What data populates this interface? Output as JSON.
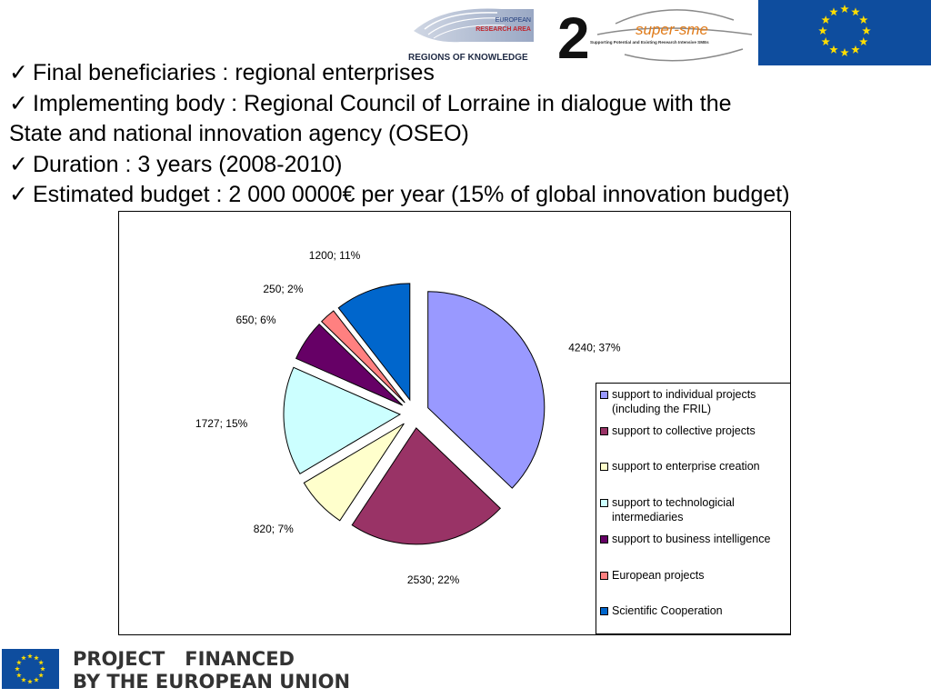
{
  "header": {
    "era_logo_text": [
      "EUROPEAN",
      "RESEARCH AREA",
      "REGIONS OF KNOWLEDGE",
      "2"
    ],
    "super_logo_text": [
      "super-sme",
      "Supporting Potential and Existing Research Intensive SMEs"
    ]
  },
  "bullets": [
    {
      "lines": [
        "Final beneficiaries : regional enterprises"
      ]
    },
    {
      "lines": [
        "Implementing body : Regional Council of Lorraine in dialogue with the",
        "State and national innovation agency (OSEO)"
      ]
    },
    {
      "lines": [
        "Duration : 3 years (2008-2010)"
      ]
    },
    {
      "lines": [
        "Estimated budget : 2 000 0000€ per year (15% of global innovation budget)"
      ]
    }
  ],
  "chart_data": {
    "type": "pie",
    "title": "",
    "exploded": true,
    "legend_position": "right",
    "slices": [
      {
        "name": "support to individual projects (including the FRIL)",
        "value": 4240,
        "percent": 37,
        "label": "4240; 37%",
        "color": "#9999ff"
      },
      {
        "name": "support to collective projects",
        "value": 2530,
        "percent": 22,
        "label": "2530; 22%",
        "color": "#993366"
      },
      {
        "name": "support to enterprise creation",
        "value": 820,
        "percent": 7,
        "label": "820; 7%",
        "color": "#ffffcc"
      },
      {
        "name": "support to technologicial intermediaries",
        "value": 1727,
        "percent": 15,
        "label": "1727; 15%",
        "color": "#ccffff"
      },
      {
        "name": "support to business intelligence",
        "value": 650,
        "percent": 6,
        "label": "650; 6%",
        "color": "#660066"
      },
      {
        "name": "European projects",
        "value": 250,
        "percent": 2,
        "label": "250; 2%",
        "color": "#ff8080"
      },
      {
        "name": "Scientific Cooperation",
        "value": 1200,
        "percent": 11,
        "label": "1200; 11%",
        "color": "#0066cc"
      }
    ],
    "legend_lines": [
      [
        "support to individual projects",
        "(including the FRIL)"
      ],
      [
        "support to collective projects"
      ],
      [
        "support to enterprise creation"
      ],
      [
        "support to technologicial",
        "intermediaries"
      ],
      [
        "support to business intelligence"
      ],
      [
        "European projects"
      ],
      [
        "Scientific Cooperation"
      ]
    ]
  },
  "footer": {
    "line1": "PROJECT   FINANCED",
    "line2": "BY THE EUROPEAN UNION"
  }
}
